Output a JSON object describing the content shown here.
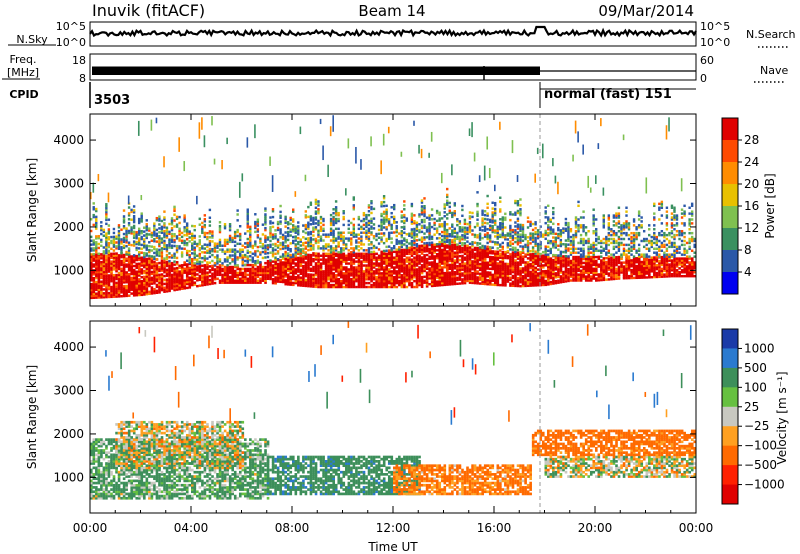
{
  "header": {
    "station": "Inuvik (fitACF)",
    "beam": "Beam 14",
    "date": "09/Mar/2014"
  },
  "top_panels": {
    "noise": {
      "left_label": "N.Sky",
      "right_label": "N.Search",
      "left_ticks": [
        "10^5",
        "10^0"
      ],
      "right_ticks": [
        "10^5",
        "10^0"
      ],
      "right_legend_style": "dotted"
    },
    "freq": {
      "left_label_1": "Freq.",
      "left_label_2": "[MHz]",
      "right_label": "Nave",
      "left_ticks": [
        "18",
        "8"
      ],
      "right_ticks": [
        "60",
        "0"
      ],
      "right_legend_style": "dotted"
    },
    "cpid": {
      "label": "CPID",
      "segments": [
        {
          "text": "3503",
          "start_hour": 0
        },
        {
          "text": "normal (fast) 151",
          "start_hour": 18
        }
      ]
    }
  },
  "chart_data": [
    {
      "type": "heatmap",
      "title": "",
      "ylabel": "Slant Range [km]",
      "xlabel": "Time UT",
      "xlim": [
        "00:00",
        "00:00"
      ],
      "ylim": [
        180,
        4600
      ],
      "x_ticks": [
        "00:00",
        "04:00",
        "08:00",
        "12:00",
        "16:00",
        "20:00",
        "00:00"
      ],
      "y_ticks": [
        1000,
        2000,
        3000,
        4000
      ],
      "colorbar": {
        "label": "Power [dB]",
        "ticks": [
          "28",
          "24",
          "20",
          "16",
          "12",
          "8",
          "4"
        ],
        "colors": [
          "#e00000",
          "#ff4a00",
          "#ff8c00",
          "#e8c000",
          "#7fc050",
          "#3a9060",
          "#2a58a8",
          "#0000f0"
        ]
      },
      "bands": [
        {
          "name": "",
          "x_start": 0,
          "x_end": 24,
          "y_lower": [
            350,
            380,
            420,
            500,
            600,
            700,
            700,
            700,
            650,
            600,
            600,
            600,
            600,
            600,
            650,
            700,
            650,
            620,
            650,
            750,
            750,
            800,
            820,
            850,
            850
          ],
          "y_upper": [
            1350,
            1400,
            1300,
            1200,
            1150,
            1100,
            1100,
            1200,
            1300,
            1400,
            1400,
            1400,
            1450,
            1550,
            1600,
            1550,
            1450,
            1400,
            1350,
            1300,
            1300,
            1300,
            1300,
            1300,
            1300
          ],
          "value": 26
        }
      ]
    },
    {
      "type": "heatmap",
      "title": "",
      "ylabel": "Slant Range [km]",
      "xlabel": "Time UT",
      "xlim": [
        "00:00",
        "00:00"
      ],
      "ylim": [
        180,
        4600
      ],
      "x_ticks": [
        "00:00",
        "04:00",
        "08:00",
        "12:00",
        "16:00",
        "20:00",
        "00:00"
      ],
      "y_ticks": [
        1000,
        2000,
        3000,
        4000
      ],
      "colorbar": {
        "label": "Velocity [m s⁻¹]",
        "ticks": [
          "1000",
          "500",
          "100",
          "25",
          "−25",
          "−100",
          "−500",
          "−1000"
        ],
        "colors": [
          "#1a3aa8",
          "#2a7ad0",
          "#3d8f5a",
          "#66c040",
          "#c8c8c0",
          "#ffa020",
          "#ff6a00",
          "#ff2000",
          "#e00000"
        ]
      },
      "regions": [
        {
          "name": "",
          "x_start": 0,
          "x_end": 7,
          "y_range": [
            500,
            1900
          ],
          "value": 100
        },
        {
          "name": "",
          "x_start": 1,
          "x_end": 6,
          "y_range": [
            1200,
            2300
          ],
          "value": 0
        },
        {
          "name": "",
          "x_start": 7,
          "x_end": 13,
          "y_range": [
            600,
            1500
          ],
          "value": 200
        },
        {
          "name": "",
          "x_start": 12,
          "x_end": 17.5,
          "y_range": [
            600,
            1300
          ],
          "value": -150
        },
        {
          "name": "",
          "x_start": 18,
          "x_end": 24,
          "y_range": [
            1000,
            1500
          ],
          "value": 0
        },
        {
          "name": "",
          "x_start": 17.5,
          "x_end": 24,
          "y_range": [
            1500,
            2100
          ],
          "value": -200
        }
      ]
    }
  ]
}
